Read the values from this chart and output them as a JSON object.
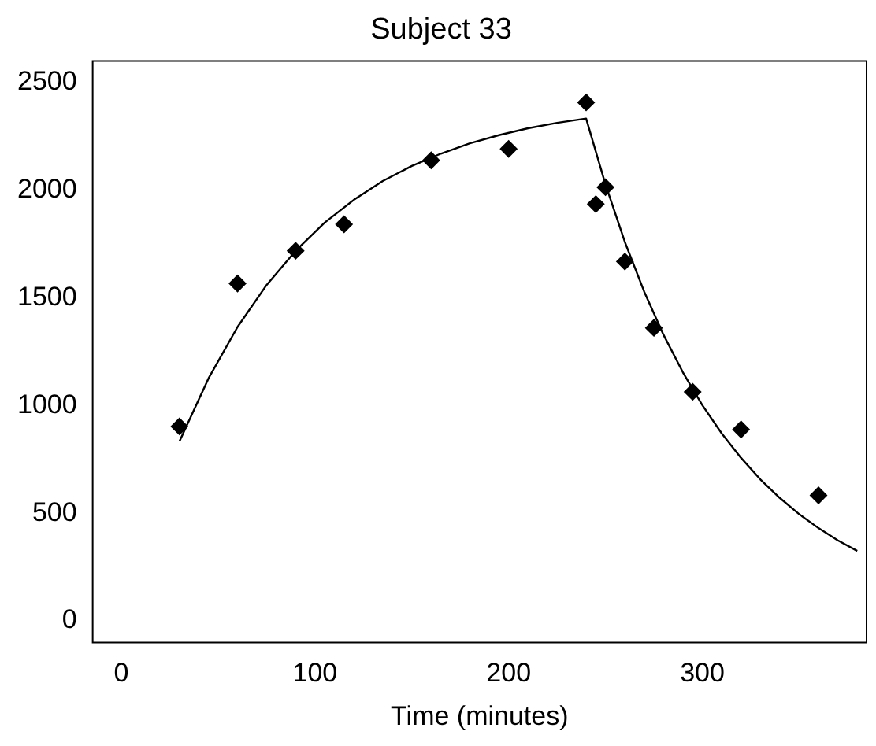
{
  "chart_data": {
    "type": "scatter",
    "title": "Subject 33",
    "xlabel": "Time (minutes)",
    "xlim": [
      -14.8,
      384.8
    ],
    "xticks": [
      0,
      100,
      200,
      300
    ],
    "ylim": [
      -100,
      2600
    ],
    "yticks": [
      0,
      500,
      1000,
      1500,
      2000,
      2500
    ],
    "grid": false,
    "legend": false,
    "series": [
      {
        "color": "#000000",
        "marker": "diamond",
        "x": [
          30,
          60,
          90,
          115,
          160,
          200,
          240,
          245,
          250,
          260,
          275,
          295,
          320,
          360
        ],
        "values": [
          903,
          1567,
          1719,
          1842,
          2139,
          2192,
          2408,
          1936,
          2014,
          1669,
          1361,
          1064,
          889,
          583
        ]
      },
      {
        "type": "line",
        "color": "#000000",
        "marker": "none",
        "line_style": "solid",
        "x": [
          30,
          45,
          60,
          75,
          90,
          105,
          120,
          135,
          150,
          165,
          180,
          195,
          210,
          225,
          240,
          250,
          260,
          270,
          280,
          290,
          300,
          310,
          320,
          330,
          340,
          350,
          360,
          370,
          380
        ],
        "values": [
          833,
          1126,
          1365,
          1560,
          1719,
          1850,
          1955,
          2043,
          2113,
          2170,
          2218,
          2256,
          2288,
          2313,
          2333,
          2027,
          1760,
          1529,
          1328,
          1154,
          1002,
          871,
          757,
          657,
          571,
          496,
          431,
          374,
          325
        ]
      }
    ]
  }
}
